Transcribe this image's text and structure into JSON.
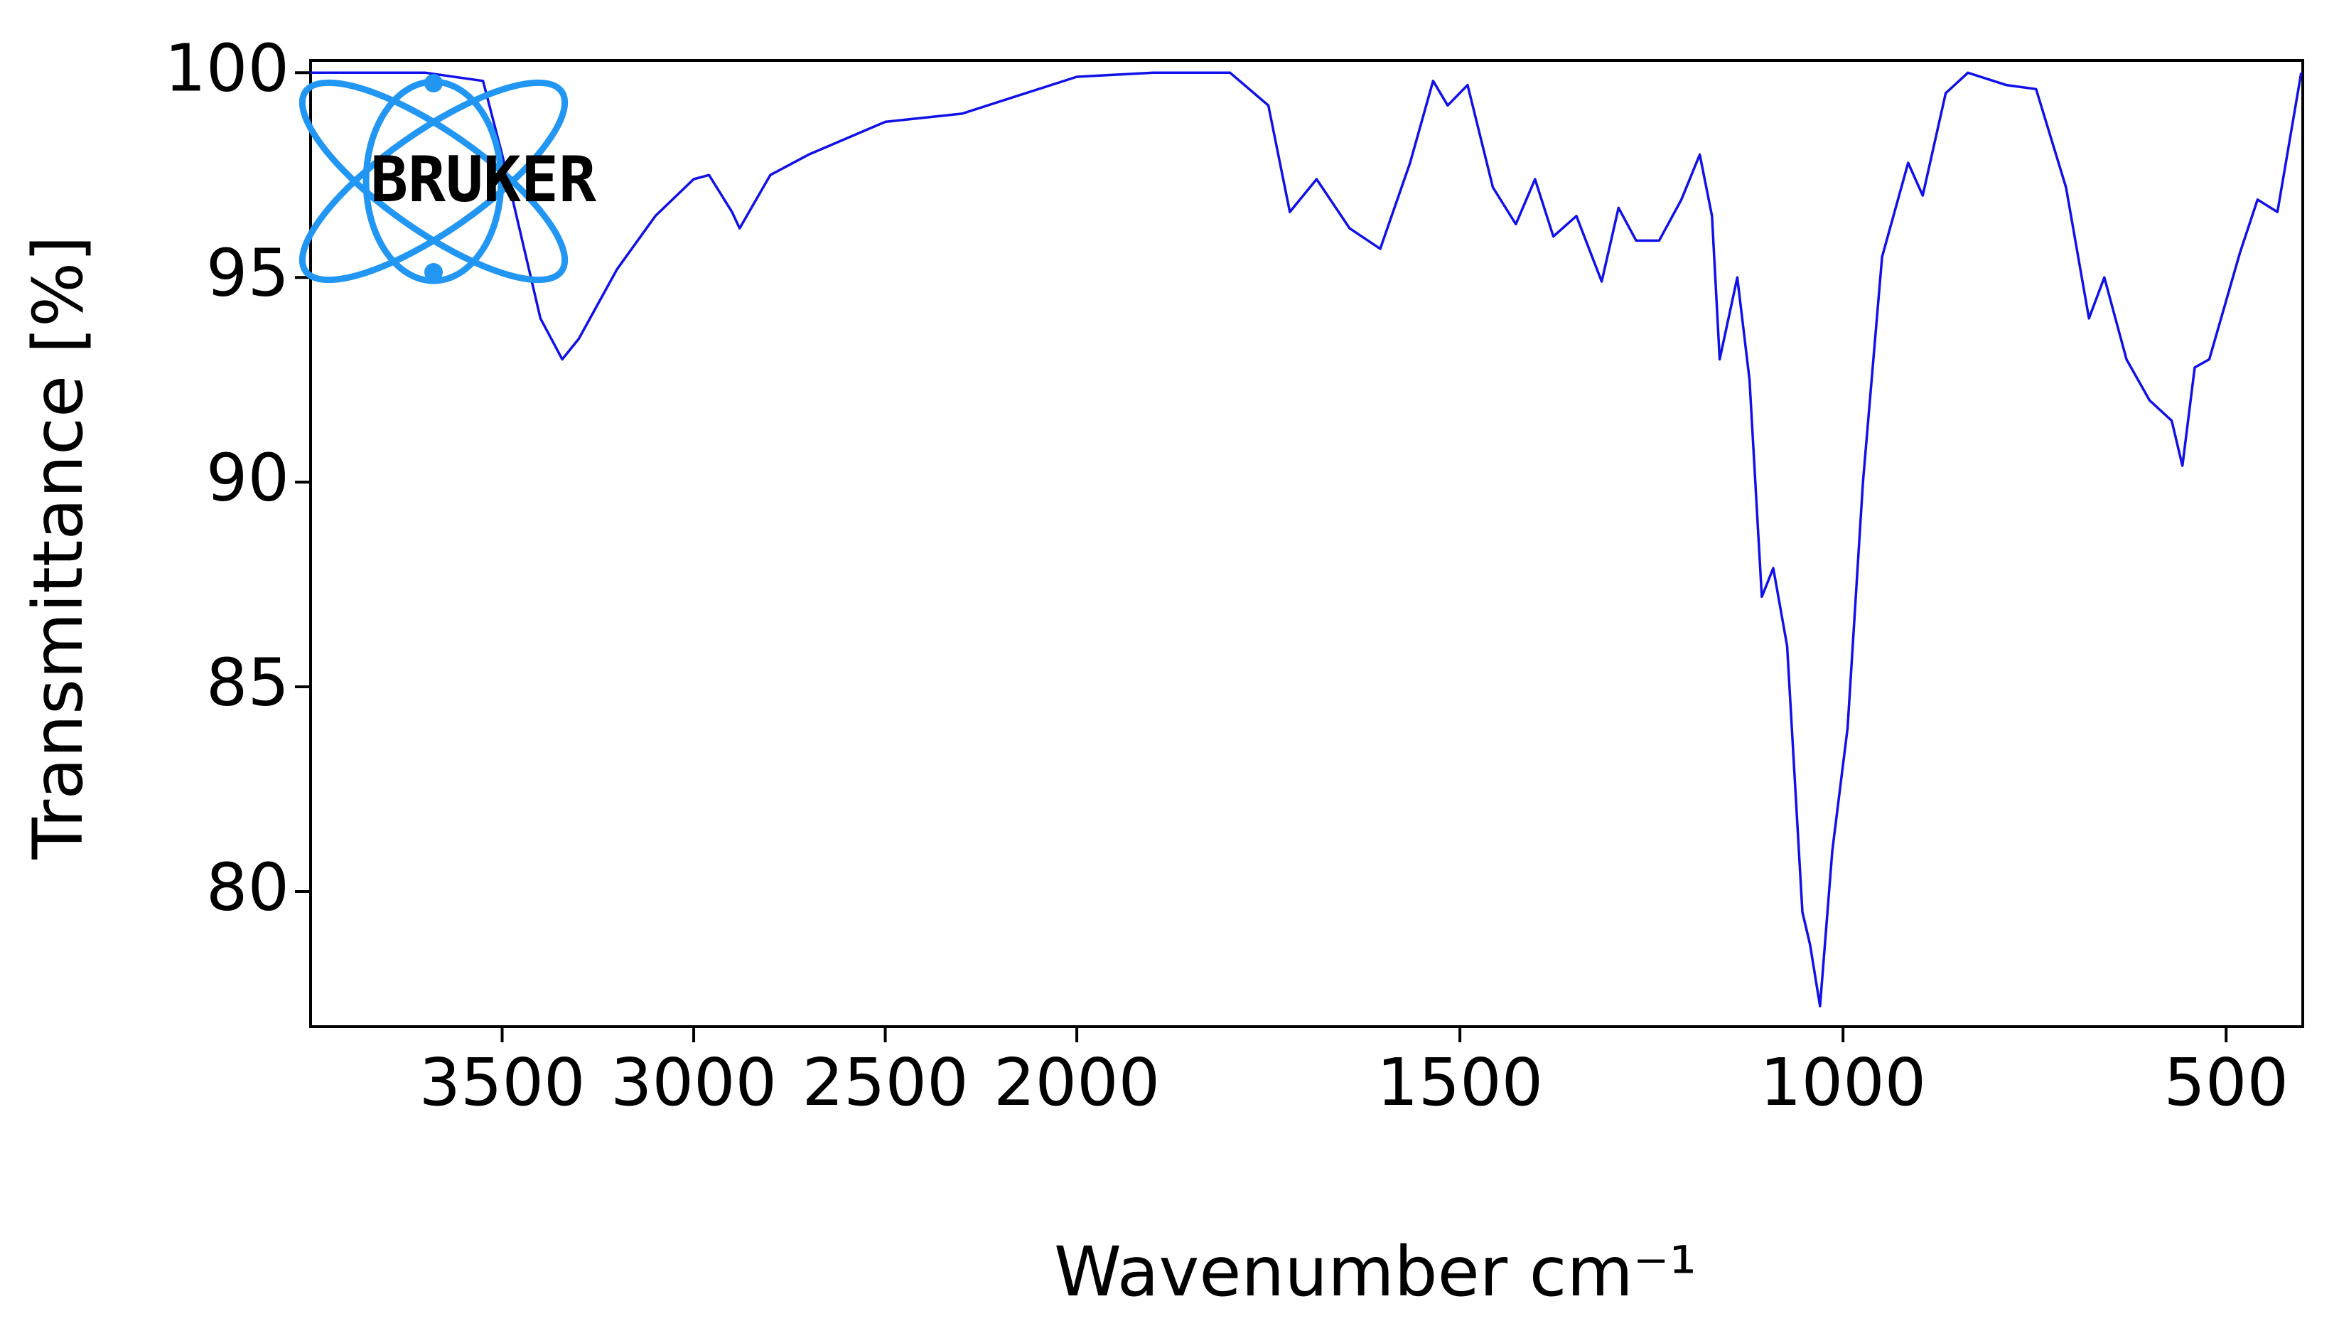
{
  "chart_data": {
    "type": "line",
    "xlabel": "Wavenumber cm⁻¹",
    "ylabel": "Transmittance [%]",
    "logo_text": "BRUKER",
    "xlim": [
      4000,
      400
    ],
    "ylim": [
      76.7,
      100.3
    ],
    "x_scale": {
      "type": "piecewise",
      "break": 2000,
      "high_side_factor": 0.5
    },
    "xticks": [
      3500,
      3000,
      2500,
      2000,
      1500,
      1000,
      500
    ],
    "yticks": [
      100,
      95,
      90,
      85,
      80
    ],
    "grid": false,
    "series": [
      {
        "color": "#1010e8",
        "x": [
          4000,
          3700,
          3550,
          3500,
          3400,
          3343,
          3300,
          3200,
          3100,
          3000,
          2960,
          2900,
          2880,
          2800,
          2700,
          2600,
          2500,
          2400,
          2300,
          2200,
          2100,
          2000,
          1900,
          1800,
          1750,
          1722,
          1687,
          1644,
          1604,
          1565,
          1535,
          1516,
          1490,
          1457,
          1427,
          1402,
          1378,
          1348,
          1315,
          1293,
          1270,
          1240,
          1211,
          1187,
          1171,
          1161,
          1138,
          1122,
          1106,
          1091,
          1073,
          1053,
          1043,
          1030,
          1014,
          994,
          974,
          949,
          915,
          896,
          866,
          837,
          787,
          748,
          709,
          679,
          659,
          630,
          600,
          571,
          557,
          541,
          522,
          482,
          459,
          433,
          402
        ],
        "values": [
          100,
          100,
          99.8,
          98,
          94,
          93,
          93.5,
          95.2,
          96.5,
          97.4,
          97.5,
          96.6,
          96.2,
          97.5,
          98,
          98.4,
          98.8,
          98.9,
          99.0,
          99.3,
          99.6,
          99.9,
          100,
          100,
          99.2,
          96.6,
          97.4,
          96.2,
          95.7,
          97.8,
          99.8,
          99.2,
          99.7,
          97.2,
          96.3,
          97.4,
          96.0,
          96.5,
          94.9,
          96.7,
          95.9,
          95.9,
          96.9,
          98.0,
          96.5,
          93.0,
          95.0,
          92.5,
          87.2,
          87.9,
          86,
          79.5,
          78.7,
          77.2,
          81,
          84,
          90,
          95.5,
          97.8,
          97.0,
          99.5,
          100,
          99.7,
          99.6,
          97.2,
          94,
          95,
          93,
          92,
          91.5,
          90.4,
          92.8,
          93,
          95.6,
          96.9,
          96.6,
          100
        ]
      }
    ]
  }
}
